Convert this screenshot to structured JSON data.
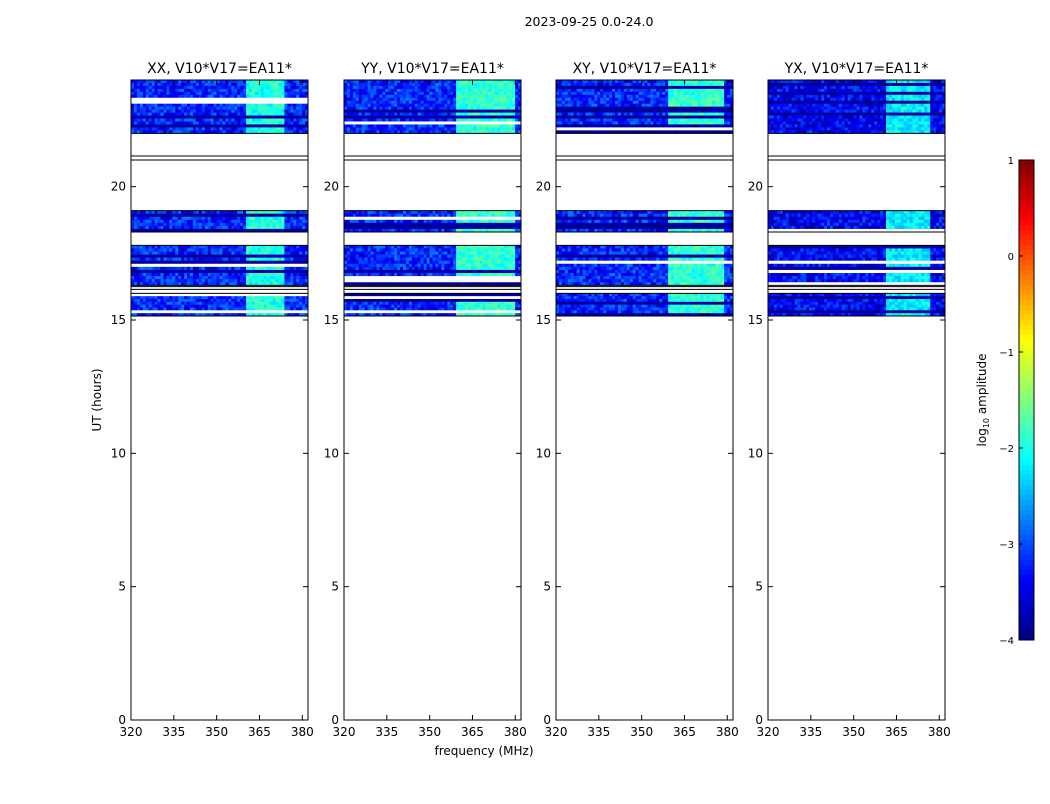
{
  "suptitle": "2023-09-25 0.0-24.0",
  "shared_xlabel": "frequency (MHz)",
  "shared_ylabel": "UT (hours)",
  "colorbar": {
    "label_prefix": "log",
    "label_sub": "10",
    "label_suffix": " amplitude",
    "range": [
      -4,
      1
    ],
    "ticks": [
      1,
      0,
      -1,
      -2,
      -3,
      -4
    ],
    "tick_labels": [
      "1",
      "0",
      "−1",
      "−2",
      "−3",
      "−4"
    ],
    "colormap": "jet"
  },
  "chart_data": [
    {
      "type": "heatmap",
      "title": "XX, V10*V17=EA11*",
      "xlabel": "",
      "ylabel": "UT (hours)",
      "xlim": [
        320,
        382
      ],
      "ylim": [
        0,
        24
      ],
      "x_ticks": [
        320,
        335,
        350,
        365,
        380
      ],
      "y_ticks": [
        0,
        5,
        10,
        15,
        20
      ],
      "data_bands_hours": [
        [
          15.15,
          16.0
        ],
        [
          16.3,
          17.8
        ],
        [
          18.3,
          19.1
        ],
        [
          22.0,
          24.0
        ]
      ],
      "bright_feature_mhz": [
        360,
        374
      ],
      "base_level_log10": -3.2,
      "feature_level_log10": -2.0
    },
    {
      "type": "heatmap",
      "title": "YY, V10*V17=EA11*",
      "xlabel": "frequency (MHz)",
      "ylabel": "",
      "xlim": [
        320,
        382
      ],
      "ylim": [
        0,
        24
      ],
      "x_ticks": [
        320,
        335,
        350,
        365,
        380
      ],
      "y_ticks": [
        0,
        5,
        10,
        15,
        20
      ],
      "data_bands_hours": [
        [
          15.15,
          16.0
        ],
        [
          16.3,
          17.8
        ],
        [
          18.3,
          19.1
        ],
        [
          22.0,
          24.0
        ]
      ],
      "bright_feature_mhz": [
        359,
        380
      ],
      "base_level_log10": -3.2,
      "feature_level_log10": -1.9
    },
    {
      "type": "heatmap",
      "title": "XY, V10*V17=EA11*",
      "xlabel": "",
      "ylabel": "",
      "xlim": [
        320,
        382
      ],
      "ylim": [
        0,
        24
      ],
      "x_ticks": [
        320,
        335,
        350,
        365,
        380
      ],
      "y_ticks": [
        0,
        5,
        10,
        15,
        20
      ],
      "data_bands_hours": [
        [
          15.15,
          16.0
        ],
        [
          16.3,
          17.8
        ],
        [
          18.3,
          19.1
        ],
        [
          22.0,
          24.0
        ]
      ],
      "bright_feature_mhz": [
        359,
        379
      ],
      "base_level_log10": -3.2,
      "feature_level_log10": -1.9
    },
    {
      "type": "heatmap",
      "title": "YX, V10*V17=EA11*",
      "xlabel": "",
      "ylabel": "",
      "xlim": [
        320,
        382
      ],
      "ylim": [
        0,
        24
      ],
      "x_ticks": [
        320,
        335,
        350,
        365,
        380
      ],
      "y_ticks": [
        0,
        5,
        10,
        15,
        20
      ],
      "data_bands_hours": [
        [
          15.15,
          16.0
        ],
        [
          16.3,
          17.8
        ],
        [
          18.3,
          19.1
        ],
        [
          22.0,
          24.0
        ]
      ],
      "bright_feature_mhz": [
        361,
        377
      ],
      "base_level_log10": -3.4,
      "feature_level_log10": -2.2
    }
  ]
}
